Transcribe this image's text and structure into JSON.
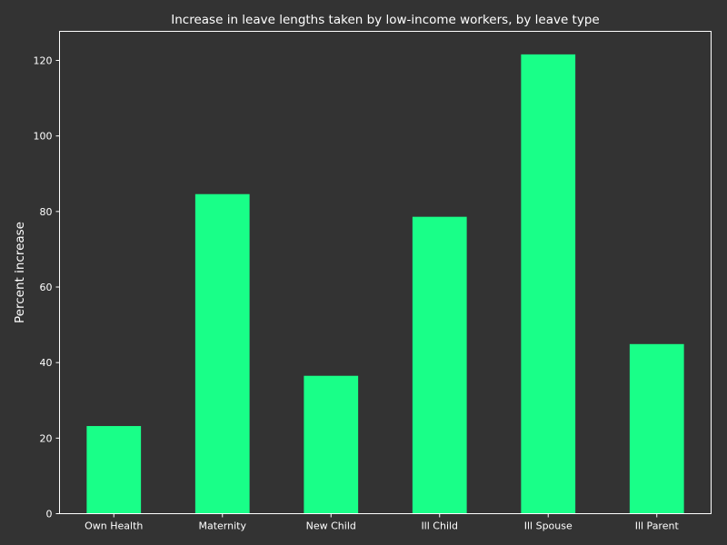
{
  "colors": {
    "background": "#333333",
    "bar": "#19ff88",
    "axis": "#ffffff",
    "text": "#ffffff"
  },
  "chart_data": {
    "type": "bar",
    "title": "Increase in leave lengths taken by low-income workers, by leave type",
    "xlabel": "",
    "ylabel": "Percent increase",
    "categories": [
      "Own Health",
      "Maternity",
      "New Child",
      "Ill Child",
      "Ill Spouse",
      "Ill Parent"
    ],
    "values": [
      23.2,
      84.6,
      36.5,
      78.6,
      121.6,
      44.9
    ],
    "ylim": [
      0,
      127.7
    ],
    "yticks": [
      0,
      20,
      40,
      60,
      80,
      100,
      120
    ],
    "grid": false,
    "legend": "none"
  }
}
